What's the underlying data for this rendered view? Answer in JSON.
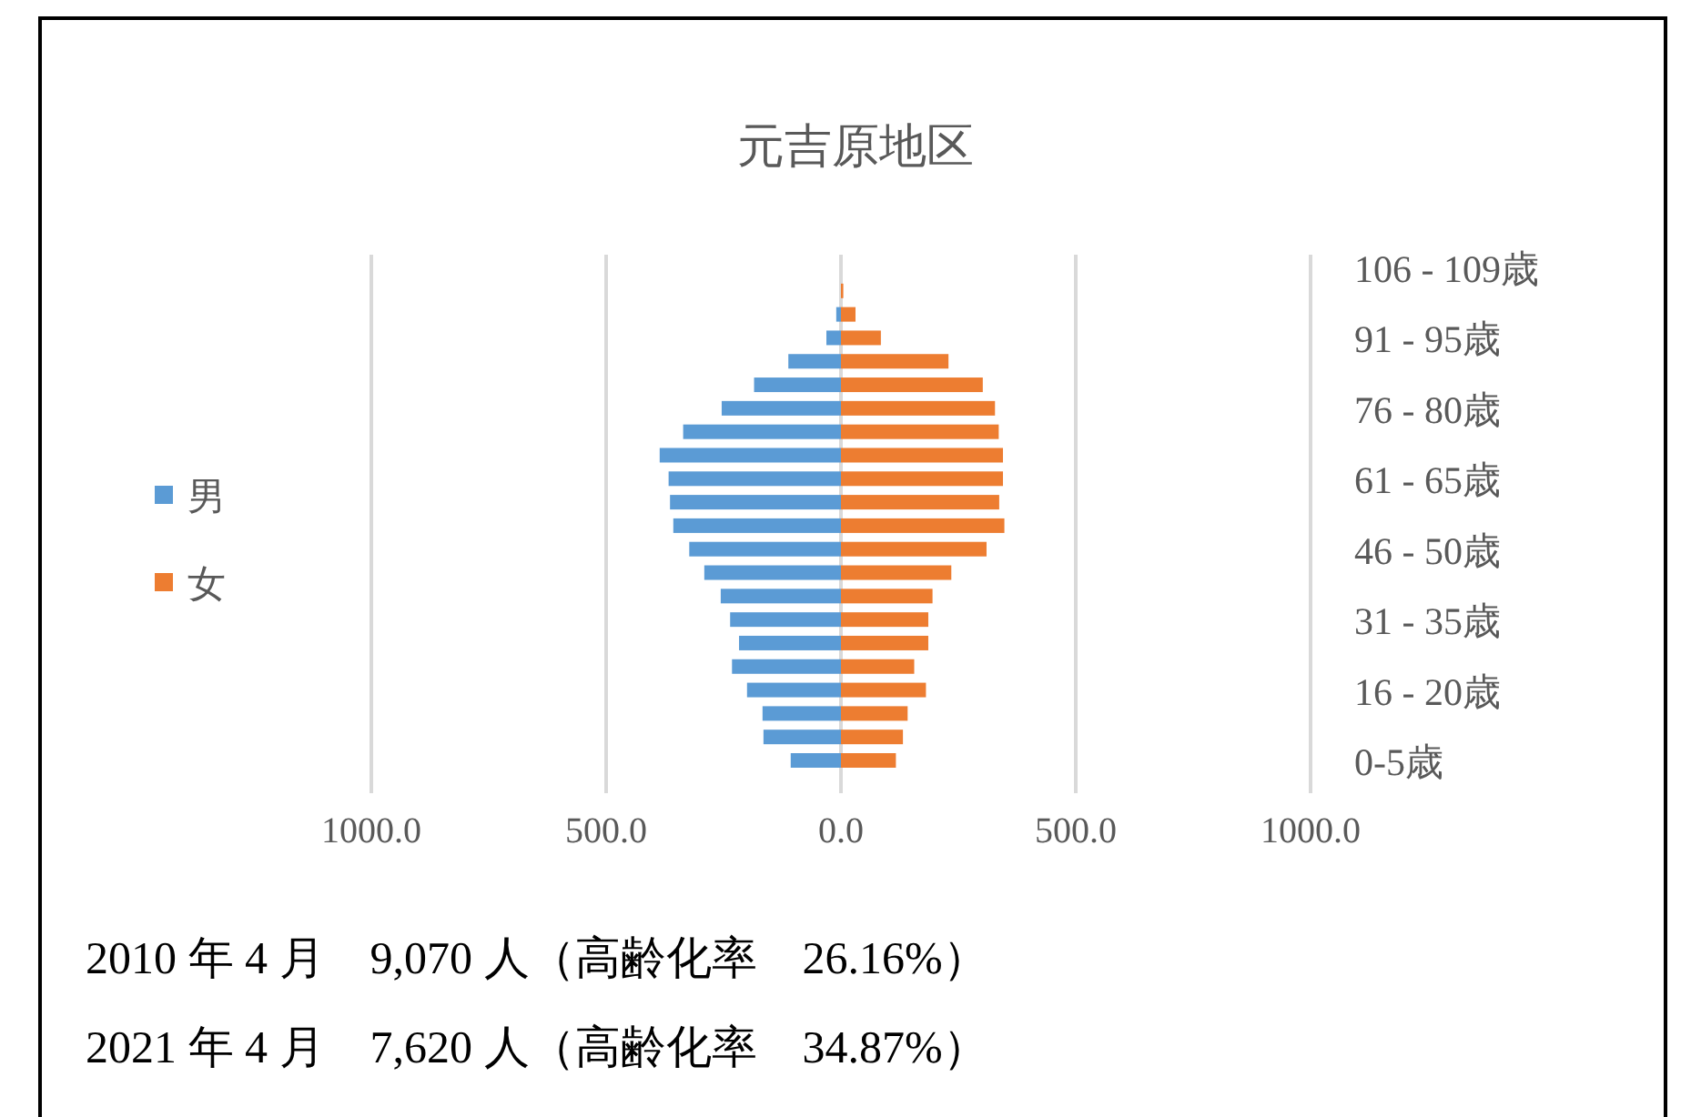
{
  "chart_data": {
    "type": "bar",
    "orientation": "horizontal",
    "stacked": true,
    "title": "元吉原地区",
    "categories": [
      "106 - 109歳",
      null,
      null,
      "91 - 95歳",
      null,
      null,
      "76 - 80歳",
      null,
      null,
      "61 - 65歳",
      null,
      null,
      "46 - 50歳",
      null,
      null,
      "31 - 35歳",
      null,
      null,
      "16 - 20歳",
      null,
      null,
      "0-5歳"
    ],
    "series": [
      {
        "name": "男",
        "color": "#5b9bd5",
        "values": [
          0,
          0,
          -10,
          -31,
          -112,
          -185,
          -254,
          -336,
          -386,
          -367,
          -364,
          -357,
          -323,
          -291,
          -256,
          -236,
          -217,
          -232,
          -200,
          -167,
          -165,
          -107
        ]
      },
      {
        "name": "女",
        "color": "#ed7d31",
        "values": [
          0,
          5,
          31,
          85,
          229,
          302,
          328,
          336,
          345,
          345,
          337,
          348,
          310,
          235,
          195,
          186,
          186,
          156,
          181,
          142,
          132,
          117
        ]
      }
    ],
    "xlim": [
      -1000,
      1000
    ],
    "xticks": [
      {
        "value": -1000,
        "label": "1000.0"
      },
      {
        "value": -500,
        "label": "500.0"
      },
      {
        "value": 0,
        "label": "0.0"
      },
      {
        "value": 500,
        "label": "500.0"
      },
      {
        "value": 1000,
        "label": "1000.0"
      }
    ],
    "grid": "x",
    "legend": "left",
    "annotations": [
      "2010 年 4 月　9,070 人（高齢化率　26.16%）",
      "2021 年 4 月　7,620 人（高齢化率　34.87%）"
    ]
  }
}
